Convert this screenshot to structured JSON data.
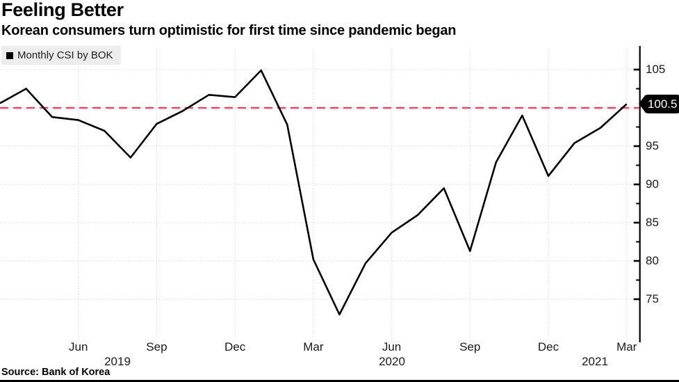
{
  "header": {
    "title": "Feeling Better",
    "subtitle": "Korean consumers turn optimistic for first time since pandemic began"
  },
  "legend": {
    "label": "Monthly CSI by BOK",
    "marker_icon": "black-square"
  },
  "source": {
    "text": "Source: Bank of Korea"
  },
  "colors": {
    "line": "#000000",
    "reference_line": "#f4455e",
    "gridline": "#d4d4d4",
    "legend_bg": "#ededed",
    "pill_bg": "#000000",
    "pill_text": "#ffffff"
  },
  "chart_data": {
    "type": "line",
    "title": "Feeling Better",
    "subtitle": "Korean consumers turn optimistic for first time since pandemic began",
    "categories": [
      "Mar 2019",
      "Apr 2019",
      "May 2019",
      "Jun 2019",
      "Jul 2019",
      "Aug 2019",
      "Sep 2019",
      "Oct 2019",
      "Nov 2019",
      "Dec 2019",
      "Jan 2020",
      "Feb 2020",
      "Mar 2020",
      "Apr 2020",
      "May 2020",
      "Jun 2020",
      "Jul 2020",
      "Aug 2020",
      "Sep 2020",
      "Oct 2020",
      "Nov 2020",
      "Dec 2020",
      "Jan 2021",
      "Feb 2021",
      "Mar 2021"
    ],
    "series": [
      {
        "name": "Monthly CSI by BOK",
        "values": [
          100.6,
          102.5,
          98.8,
          98.4,
          97.0,
          93.5,
          97.9,
          99.6,
          101.7,
          101.4,
          104.9,
          97.8,
          80.2,
          73.0,
          79.7,
          83.7,
          86.0,
          89.5,
          81.3,
          92.9,
          99.0,
          91.1,
          95.4,
          97.4,
          100.5
        ]
      }
    ],
    "x_tick_labels": [
      {
        "index": 3,
        "label": "Jun"
      },
      {
        "index": 6,
        "label": "Sep"
      },
      {
        "index": 9,
        "label": "Dec"
      },
      {
        "index": 12,
        "label": "Mar"
      },
      {
        "index": 15,
        "label": "Jun"
      },
      {
        "index": 18,
        "label": "Sep"
      },
      {
        "index": 21,
        "label": "Dec"
      },
      {
        "index": 24,
        "label": "Mar"
      }
    ],
    "x_year_labels": [
      "2019",
      "2020",
      "2021"
    ],
    "y_ticks_labeled": [
      105,
      95,
      90,
      85,
      80,
      75
    ],
    "y_ticks_minor": [
      102.5,
      97.5,
      92.5,
      87.5,
      82.5,
      77.5
    ],
    "y_gridlines": [
      105,
      100,
      95,
      90,
      85,
      80,
      75
    ],
    "ylim": [
      70,
      108.5
    ],
    "reference_line_y": 100,
    "last_value": 100.5,
    "last_value_label": "100.5",
    "grid": true,
    "legend_position": "top-left",
    "axis_side": "right"
  }
}
